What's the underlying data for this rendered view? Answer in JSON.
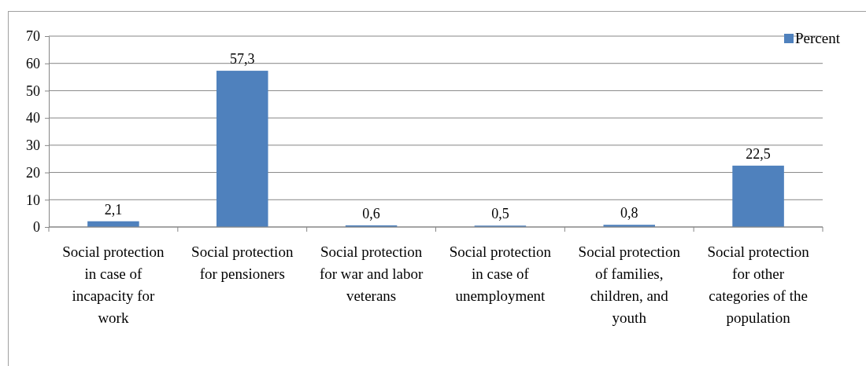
{
  "chart_data": {
    "type": "bar",
    "categories": [
      "Social protection in case of incapacity for work",
      "Social protection for pensioners",
      "Social protection for war and labor veterans",
      "Social protection in case of unemployment",
      "Social protection of families, children, and youth",
      "Social protection for other categories of the population"
    ],
    "series": [
      {
        "name": "Percent",
        "color": "#4f81bd",
        "values": [
          2.1,
          57.3,
          0.6,
          0.5,
          0.8,
          22.5
        ],
        "value_labels": [
          "2,1",
          "57,3",
          "0,6",
          "0,5",
          "0,8",
          "22,5"
        ]
      }
    ],
    "ylim": [
      0,
      70
    ],
    "yticks": [
      0,
      10,
      20,
      30,
      40,
      50,
      60,
      70
    ],
    "grid": "y",
    "legend": "top right"
  }
}
